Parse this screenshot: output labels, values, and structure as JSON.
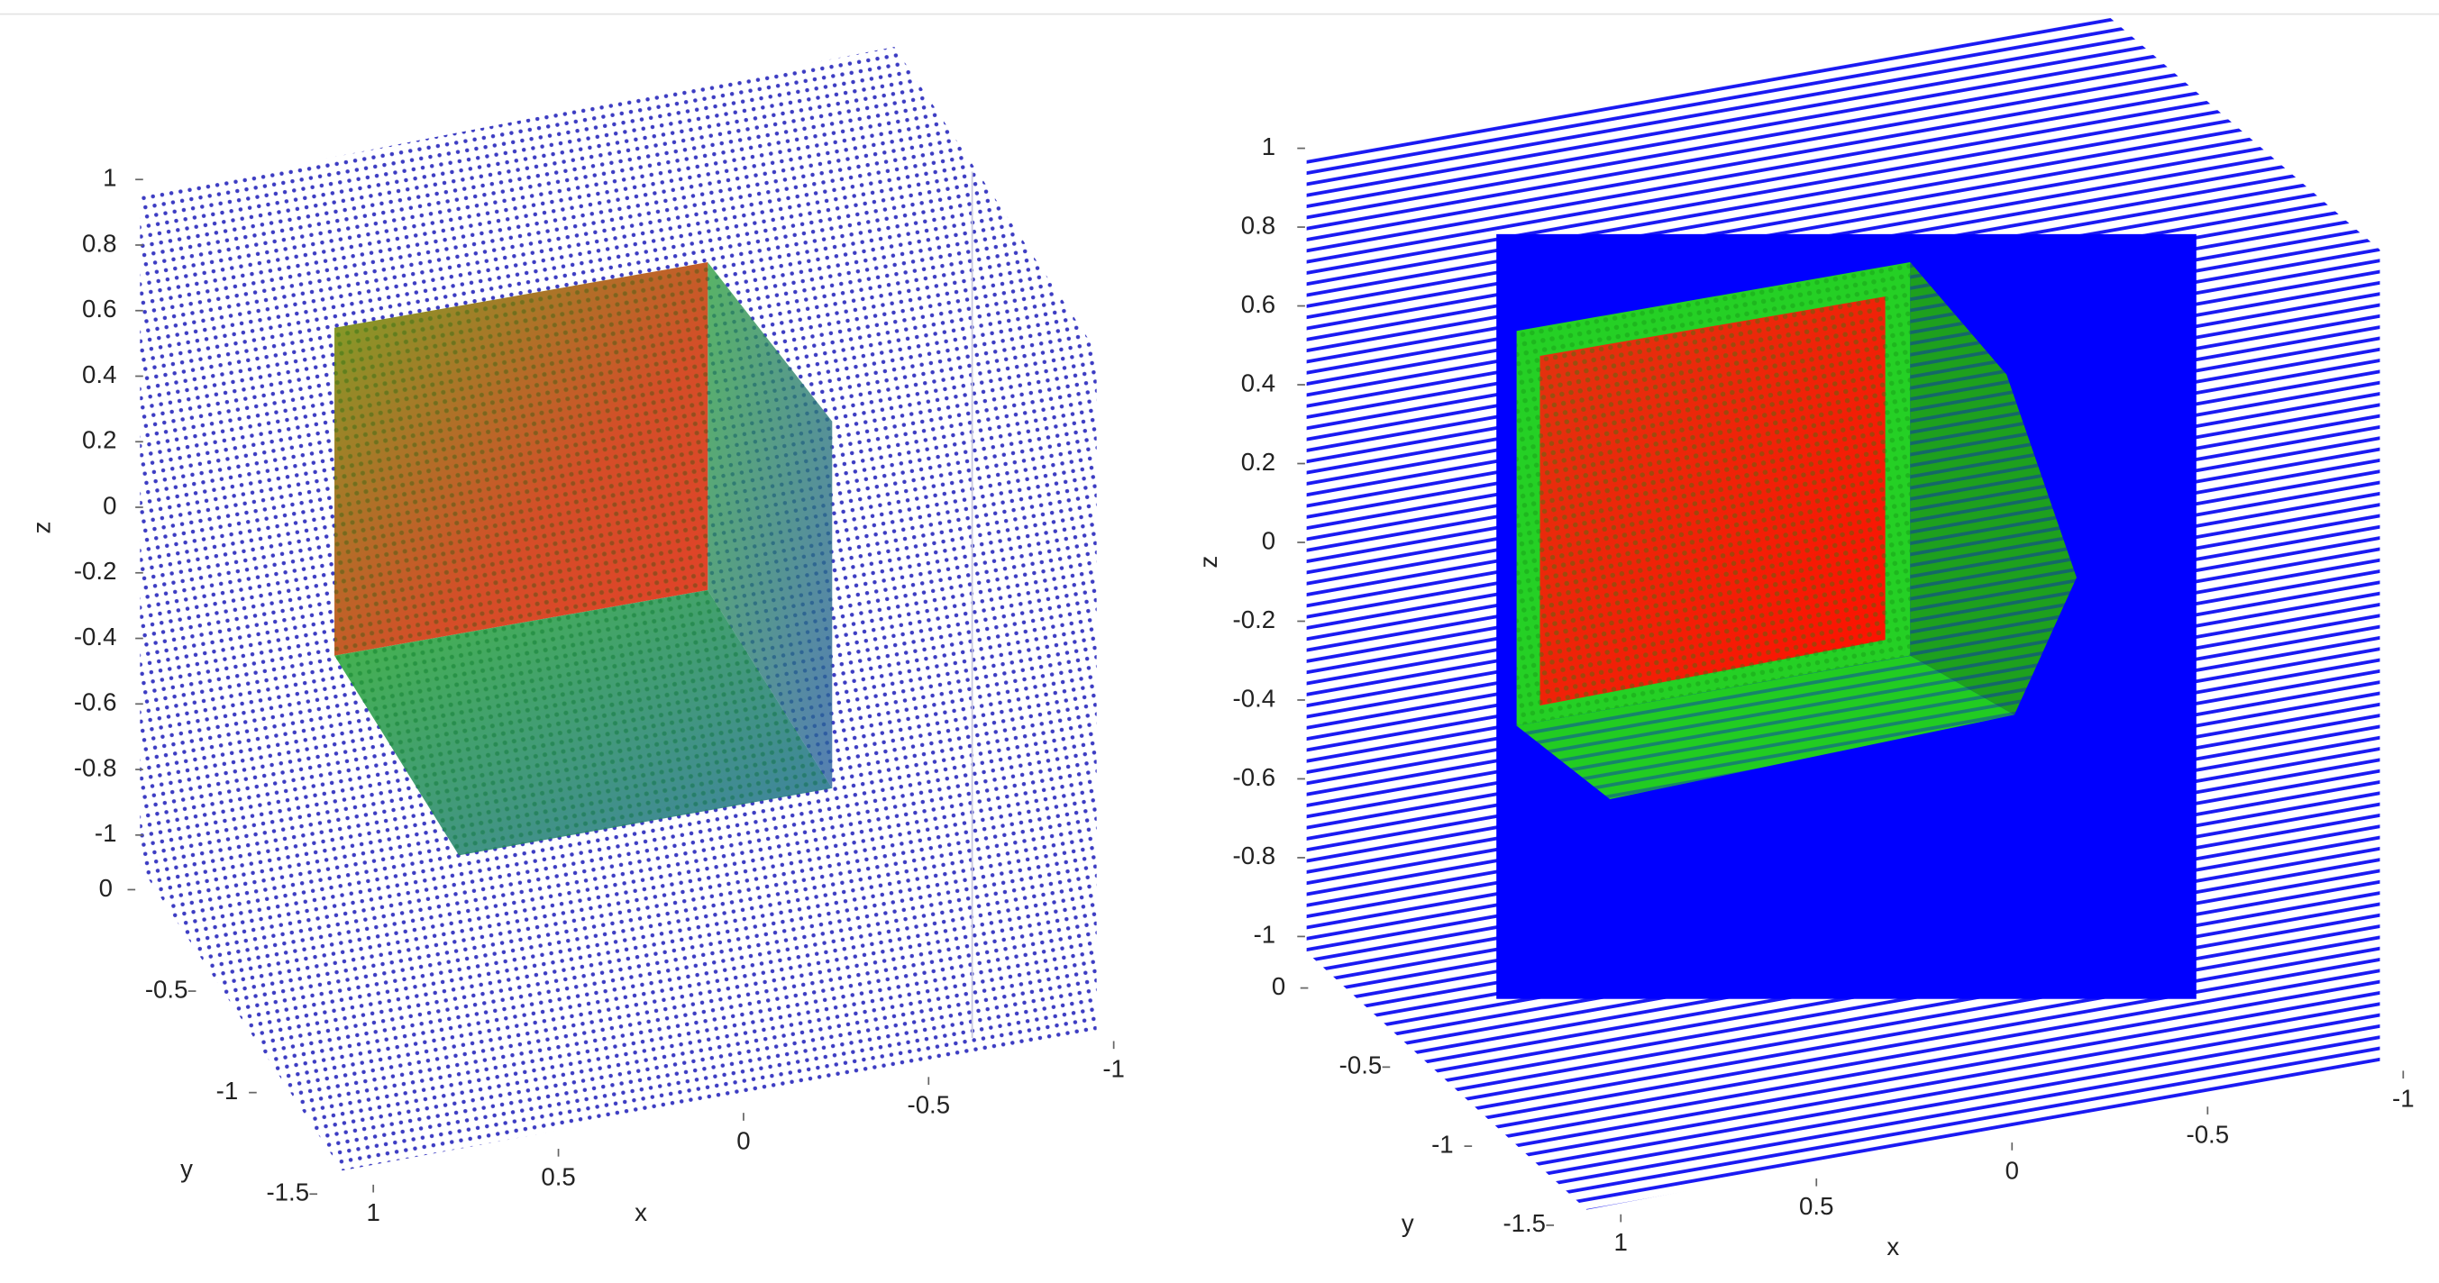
{
  "chart_data": [
    {
      "type": "scatter3d",
      "xlabel": "x",
      "ylabel": "y",
      "zlabel": "z",
      "xlim": [
        -1,
        1
      ],
      "ylim": [
        -1.5,
        0
      ],
      "zlim": [
        -1,
        1
      ],
      "xticks": [
        -1,
        -0.5,
        0,
        0.5,
        1
      ],
      "yticks": [
        -1.5,
        -1,
        -0.5,
        0
      ],
      "zticks": [
        -1,
        -0.8,
        -0.6,
        -0.4,
        -0.2,
        0,
        0.2,
        0.4,
        0.6,
        0.8,
        1
      ],
      "color": "#1010c8"
    },
    {
      "type": "scatter3d",
      "xlabel": "x",
      "ylabel": "y",
      "zlabel": "z",
      "xlim": [
        -1,
        1
      ],
      "ylim": [
        -1.5,
        0
      ],
      "zlim": [
        -1,
        1
      ],
      "xticks": [
        -1,
        -0.5,
        0,
        0.5,
        1
      ],
      "yticks": [
        -1.5,
        -1,
        -0.5,
        0
      ],
      "zticks": [
        -1,
        -0.8,
        -0.6,
        -0.4,
        -0.2,
        0,
        0.2,
        0.4,
        0.6,
        0.8,
        1
      ],
      "color": "#0000ff"
    }
  ]
}
